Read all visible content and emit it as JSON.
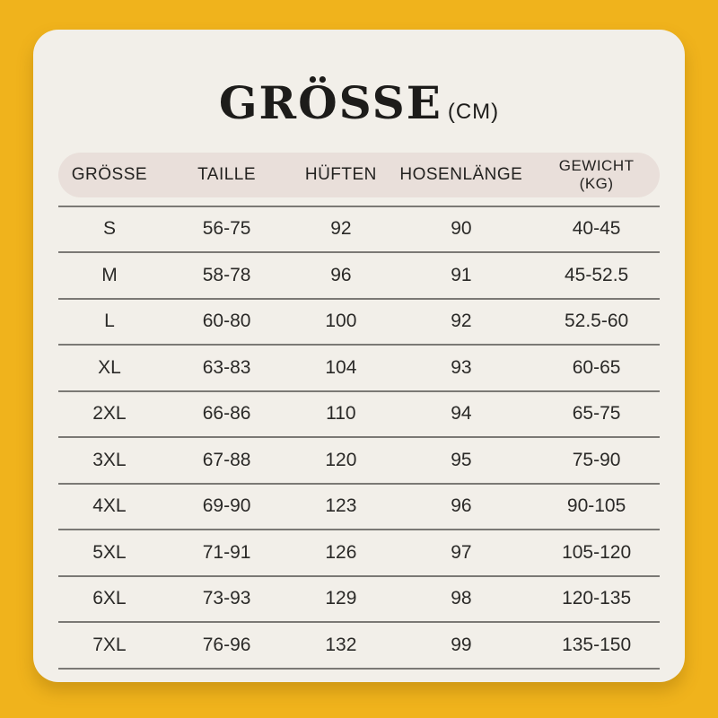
{
  "colors": {
    "background": "#F0B31C",
    "card": "#F2EFE9",
    "header_pill": "#E9DFDA",
    "divider": "#7B7975",
    "text": "#232220"
  },
  "title": {
    "main": "GRÖSSE",
    "unit": "(CM)"
  },
  "chart_data": {
    "type": "table",
    "title": "GRÖSSE (CM)",
    "columns": [
      "GRÖSSE",
      "TAILLE",
      "HÜFTEN",
      "HOSENLÄNGE",
      "GEWICHT\n(KG)"
    ],
    "rows": [
      [
        "S",
        "56-75",
        "92",
        "90",
        "40-45"
      ],
      [
        "M",
        "58-78",
        "96",
        "91",
        "45-52.5"
      ],
      [
        "L",
        "60-80",
        "100",
        "92",
        "52.5-60"
      ],
      [
        "XL",
        "63-83",
        "104",
        "93",
        "60-65"
      ],
      [
        "2XL",
        "66-86",
        "110",
        "94",
        "65-75"
      ],
      [
        "3XL",
        "67-88",
        "120",
        "95",
        "75-90"
      ],
      [
        "4XL",
        "69-90",
        "123",
        "96",
        "90-105"
      ],
      [
        "5XL",
        "71-91",
        "126",
        "97",
        "105-120"
      ],
      [
        "6XL",
        "73-93",
        "129",
        "98",
        "120-135"
      ],
      [
        "7XL",
        "76-96",
        "132",
        "99",
        "135-150"
      ]
    ]
  }
}
